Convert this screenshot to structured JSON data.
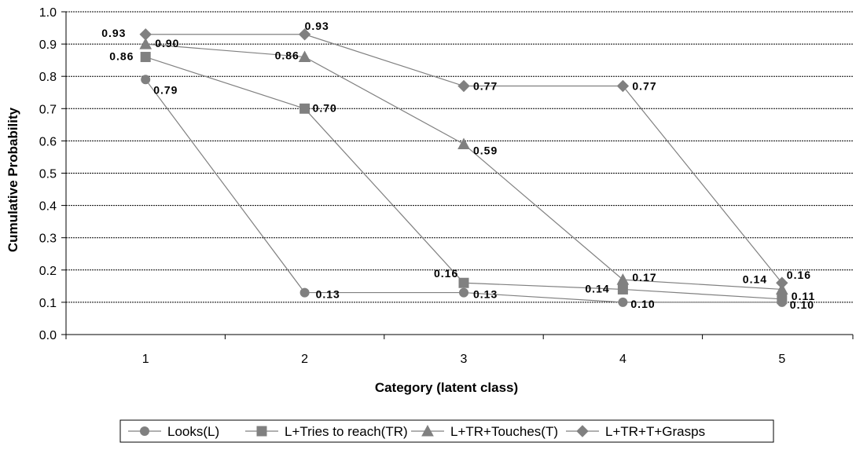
{
  "chart_data": {
    "type": "line",
    "title": "",
    "xlabel": "Category (latent class)",
    "ylabel": "Cumulative Probability",
    "x": [
      1,
      2,
      3,
      4,
      5
    ],
    "ylim": [
      0,
      1.0
    ],
    "yticks": [
      "0.0",
      "0.1",
      "0.2",
      "0.3",
      "0.4",
      "0.5",
      "0.6",
      "0.7",
      "0.8",
      "0.9",
      "1.0"
    ],
    "xticks": [
      "1",
      "2",
      "3",
      "4",
      "5"
    ],
    "grid": "horizontal-dashed",
    "legend": "bottom",
    "series": [
      {
        "name": "Looks(L)",
        "marker": "circle",
        "values": [
          0.79,
          0.13,
          0.13,
          0.1,
          0.1
        ],
        "labels": [
          "0.79",
          "0.13",
          "0.13",
          "0.10",
          "0.10"
        ]
      },
      {
        "name": "L+Tries to reach(TR)",
        "marker": "square",
        "values": [
          0.86,
          0.7,
          0.16,
          0.14,
          0.11
        ],
        "labels": [
          "0.86",
          "0.70",
          "0.16",
          "0.14",
          "0.11"
        ]
      },
      {
        "name": "L+TR+Touches(T)",
        "marker": "triangle",
        "values": [
          0.9,
          0.86,
          0.59,
          0.17,
          0.14
        ],
        "labels": [
          "0.90",
          "0.86",
          "0.59",
          "0.17",
          "0.14"
        ]
      },
      {
        "name": "L+TR+T+Grasps",
        "marker": "diamond",
        "values": [
          0.93,
          0.93,
          0.77,
          0.77,
          0.16
        ],
        "labels": [
          "0.93",
          "0.93",
          "0.77",
          "0.77",
          "0.16"
        ]
      }
    ],
    "colors": {
      "line": "#808080",
      "marker": "#808080",
      "grid": "#000000"
    }
  }
}
